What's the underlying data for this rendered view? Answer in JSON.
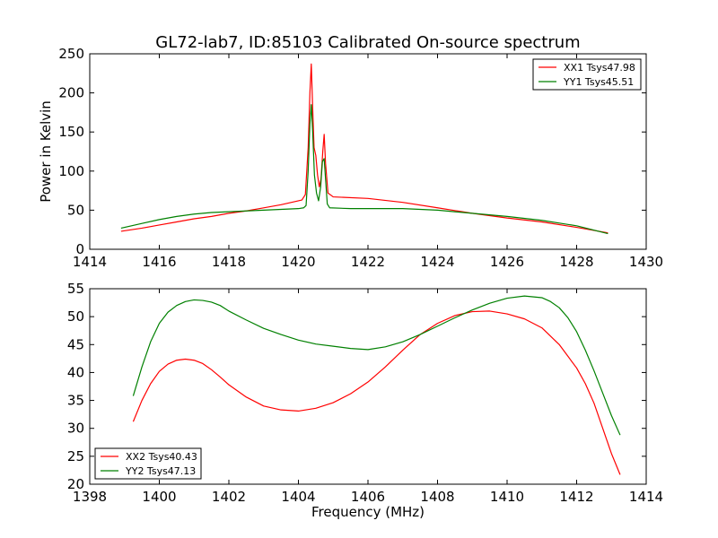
{
  "figure": {
    "title": "GL72-lab7, ID:85103 Calibrated On-source spectrum",
    "xlabel": "Frequency (MHz)"
  },
  "chart_data": [
    {
      "type": "line",
      "title": "GL72-lab7, ID:85103 Calibrated On-source spectrum",
      "ylabel": "Power in Kelvin",
      "xlabel": "",
      "xlim": [
        1414,
        1430
      ],
      "ylim": [
        0,
        250
      ],
      "xticks": [
        1414,
        1416,
        1418,
        1420,
        1422,
        1424,
        1426,
        1428,
        1430
      ],
      "yticks": [
        0,
        50,
        100,
        150,
        200,
        250
      ],
      "legend_position": "top-right",
      "grid": false,
      "series": [
        {
          "name": "XX1 Tsys47.98",
          "color": "#ff0000",
          "points": [
            [
              1414.9,
              23
            ],
            [
              1415.5,
              27
            ],
            [
              1416,
              31
            ],
            [
              1416.5,
              35
            ],
            [
              1417,
              39
            ],
            [
              1417.5,
              42
            ],
            [
              1418,
              46
            ],
            [
              1418.5,
              49
            ],
            [
              1419,
              53
            ],
            [
              1419.5,
              57
            ],
            [
              1419.8,
              60
            ],
            [
              1420.1,
              63
            ],
            [
              1420.2,
              70
            ],
            [
              1420.28,
              130
            ],
            [
              1420.33,
              200
            ],
            [
              1420.37,
              237
            ],
            [
              1420.41,
              180
            ],
            [
              1420.45,
              130
            ],
            [
              1420.5,
              120
            ],
            [
              1420.55,
              95
            ],
            [
              1420.6,
              80
            ],
            [
              1420.65,
              90
            ],
            [
              1420.7,
              125
            ],
            [
              1420.74,
              147
            ],
            [
              1420.78,
              110
            ],
            [
              1420.85,
              72
            ],
            [
              1421,
              67
            ],
            [
              1422,
              65
            ],
            [
              1423,
              60
            ],
            [
              1424,
              53
            ],
            [
              1425,
              46
            ],
            [
              1426,
              40
            ],
            [
              1427,
              35
            ],
            [
              1428,
              28
            ],
            [
              1428.9,
              21
            ]
          ]
        },
        {
          "name": "YY1 Tsys45.51",
          "color": "#008000",
          "points": [
            [
              1414.9,
              27
            ],
            [
              1415.5,
              33
            ],
            [
              1416,
              38
            ],
            [
              1416.5,
              42
            ],
            [
              1417,
              45
            ],
            [
              1417.5,
              47
            ],
            [
              1418,
              48
            ],
            [
              1418.5,
              49
            ],
            [
              1419,
              50
            ],
            [
              1419.5,
              51
            ],
            [
              1420,
              52
            ],
            [
              1420.15,
              53
            ],
            [
              1420.22,
              56
            ],
            [
              1420.28,
              100
            ],
            [
              1420.33,
              160
            ],
            [
              1420.37,
              185
            ],
            [
              1420.41,
              150
            ],
            [
              1420.46,
              95
            ],
            [
              1420.52,
              72
            ],
            [
              1420.58,
              62
            ],
            [
              1420.64,
              80
            ],
            [
              1420.69,
              112
            ],
            [
              1420.74,
              116
            ],
            [
              1420.78,
              90
            ],
            [
              1420.83,
              58
            ],
            [
              1420.9,
              53
            ],
            [
              1421.5,
              52
            ],
            [
              1422,
              52
            ],
            [
              1423,
              52
            ],
            [
              1424,
              50
            ],
            [
              1425,
              46
            ],
            [
              1426,
              42
            ],
            [
              1427,
              37
            ],
            [
              1428,
              30
            ],
            [
              1428.9,
              20
            ]
          ]
        }
      ]
    },
    {
      "type": "line",
      "title": "",
      "ylabel": "",
      "xlabel": "Frequency (MHz)",
      "xlim": [
        1398,
        1414
      ],
      "ylim": [
        20,
        55
      ],
      "xticks": [
        1398,
        1400,
        1402,
        1404,
        1406,
        1408,
        1410,
        1412,
        1414
      ],
      "yticks": [
        20,
        25,
        30,
        35,
        40,
        45,
        50,
        55
      ],
      "legend_position": "bottom-left",
      "grid": false,
      "series": [
        {
          "name": "XX2 Tsys40.43",
          "color": "#ff0000",
          "points": [
            [
              1399.25,
              31.2
            ],
            [
              1399.5,
              35
            ],
            [
              1399.75,
              38
            ],
            [
              1400,
              40.2
            ],
            [
              1400.25,
              41.5
            ],
            [
              1400.5,
              42.2
            ],
            [
              1400.75,
              42.4
            ],
            [
              1401,
              42.2
            ],
            [
              1401.25,
              41.6
            ],
            [
              1401.5,
              40.5
            ],
            [
              1401.75,
              39.2
            ],
            [
              1402,
              37.8
            ],
            [
              1402.5,
              35.6
            ],
            [
              1403,
              34
            ],
            [
              1403.5,
              33.3
            ],
            [
              1404,
              33.1
            ],
            [
              1404.5,
              33.6
            ],
            [
              1405,
              34.6
            ],
            [
              1405.5,
              36.2
            ],
            [
              1406,
              38.3
            ],
            [
              1406.5,
              41
            ],
            [
              1407,
              44
            ],
            [
              1407.5,
              46.8
            ],
            [
              1408,
              48.8
            ],
            [
              1408.5,
              50.2
            ],
            [
              1409,
              50.9
            ],
            [
              1409.5,
              51
            ],
            [
              1410,
              50.5
            ],
            [
              1410.5,
              49.6
            ],
            [
              1411,
              48
            ],
            [
              1411.5,
              45
            ],
            [
              1412,
              40.8
            ],
            [
              1412.25,
              38
            ],
            [
              1412.5,
              34.5
            ],
            [
              1412.75,
              30
            ],
            [
              1413,
              25.5
            ],
            [
              1413.25,
              21.7
            ]
          ]
        },
        {
          "name": "YY2 Tsys47.13",
          "color": "#008000",
          "points": [
            [
              1399.25,
              35.8
            ],
            [
              1399.5,
              41
            ],
            [
              1399.75,
              45.5
            ],
            [
              1400,
              48.8
            ],
            [
              1400.25,
              50.8
            ],
            [
              1400.5,
              52
            ],
            [
              1400.75,
              52.7
            ],
            [
              1401,
              53
            ],
            [
              1401.25,
              52.9
            ],
            [
              1401.5,
              52.6
            ],
            [
              1401.75,
              52
            ],
            [
              1402,
              51
            ],
            [
              1402.5,
              49.4
            ],
            [
              1403,
              47.9
            ],
            [
              1403.5,
              46.8
            ],
            [
              1404,
              45.8
            ],
            [
              1404.5,
              45.1
            ],
            [
              1405,
              44.7
            ],
            [
              1405.5,
              44.3
            ],
            [
              1406,
              44.1
            ],
            [
              1406.5,
              44.6
            ],
            [
              1407,
              45.5
            ],
            [
              1407.5,
              46.8
            ],
            [
              1408,
              48.3
            ],
            [
              1408.5,
              49.8
            ],
            [
              1409,
              51.2
            ],
            [
              1409.5,
              52.4
            ],
            [
              1410,
              53.3
            ],
            [
              1410.5,
              53.7
            ],
            [
              1411,
              53.4
            ],
            [
              1411.25,
              52.7
            ],
            [
              1411.5,
              51.6
            ],
            [
              1411.75,
              49.8
            ],
            [
              1412,
              47.3
            ],
            [
              1412.25,
              44
            ],
            [
              1412.5,
              40.3
            ],
            [
              1412.75,
              36.3
            ],
            [
              1413,
              32.3
            ],
            [
              1413.25,
              28.8
            ]
          ]
        }
      ]
    }
  ]
}
